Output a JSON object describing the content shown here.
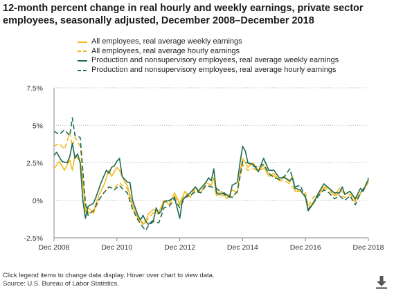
{
  "title_line1": "12-month percent change in real hourly and weekly earnings, private sector",
  "title_line2": "employees, seasonally adjusted, December 2008–December 2018",
  "footnote_line1": "Click legend items to change data display. Hover over chart to view data.",
  "footnote_line2": "Source: U.S. Bureau of Labor Statistics.",
  "download_icon": "download-icon",
  "colors": {
    "all": "#f2b81d",
    "prod": "#1f6b4f"
  },
  "chart_data": {
    "type": "line",
    "xlabel": "",
    "ylabel": "",
    "ylim": [
      -2.5,
      7.5
    ],
    "yticks": [
      -2.5,
      0,
      2.5,
      5,
      7.5
    ],
    "ytick_labels": [
      "-2.5%",
      "0%",
      "2.5%",
      "5%",
      "7.5%"
    ],
    "xlim": [
      0,
      120
    ],
    "xticks": [
      0,
      24,
      48,
      72,
      96,
      120
    ],
    "xtick_labels": [
      "Dec 2008",
      "Dec 2010",
      "Dec 2012",
      "Dec 2014",
      "Dec 2016",
      "Dec 2018"
    ],
    "x_unit": "months since Dec 2008",
    "grid": "horizontal dotted",
    "legend_position": "top",
    "series": [
      {
        "name": "All employees, real average weekly earnings",
        "style": "solid",
        "color": "#f2b81d",
        "points": [
          [
            0,
            2.1
          ],
          [
            2,
            2.6
          ],
          [
            4,
            2.0
          ],
          [
            6,
            2.7
          ],
          [
            7,
            2.0
          ],
          [
            8,
            3.0
          ],
          [
            10,
            2.6
          ],
          [
            11,
            1.2
          ],
          [
            12,
            -0.8
          ],
          [
            13,
            -0.5
          ],
          [
            15,
            -0.8
          ],
          [
            17,
            0.3
          ],
          [
            19,
            1.0
          ],
          [
            21,
            2.0
          ],
          [
            22,
            1.6
          ],
          [
            24,
            2.2
          ],
          [
            25,
            2.0
          ],
          [
            26,
            1.6
          ],
          [
            27,
            1.2
          ],
          [
            28,
            1.0
          ],
          [
            30,
            -0.3
          ],
          [
            32,
            -1.2
          ],
          [
            34,
            -1.6
          ],
          [
            35,
            -1.4
          ],
          [
            36,
            -0.9
          ],
          [
            38,
            -0.6
          ],
          [
            40,
            -0.8
          ],
          [
            42,
            0.0
          ],
          [
            44,
            -0.3
          ],
          [
            46,
            0.5
          ],
          [
            48,
            -0.2
          ],
          [
            50,
            0.6
          ],
          [
            52,
            0.2
          ],
          [
            54,
            0.9
          ],
          [
            56,
            0.5
          ],
          [
            58,
            1.2
          ],
          [
            60,
            1.0
          ],
          [
            61,
            1.5
          ],
          [
            62,
            0.3
          ],
          [
            64,
            0.6
          ],
          [
            66,
            0.1
          ],
          [
            68,
            0.7
          ],
          [
            70,
            0.5
          ],
          [
            71,
            1.8
          ],
          [
            72,
            2.8
          ],
          [
            74,
            2.2
          ],
          [
            76,
            2.5
          ],
          [
            78,
            2.0
          ],
          [
            80,
            2.3
          ],
          [
            82,
            1.6
          ],
          [
            84,
            1.8
          ],
          [
            86,
            1.3
          ],
          [
            88,
            1.6
          ],
          [
            90,
            1.2
          ],
          [
            91,
            1.6
          ],
          [
            92,
            0.6
          ],
          [
            94,
            0.6
          ],
          [
            96,
            0.3
          ],
          [
            97,
            -0.6
          ],
          [
            99,
            -0.1
          ],
          [
            101,
            0.4
          ],
          [
            103,
            0.9
          ],
          [
            105,
            0.8
          ],
          [
            107,
            0.3
          ],
          [
            109,
            0.8
          ],
          [
            111,
            0.4
          ],
          [
            113,
            0.6
          ],
          [
            115,
            0.0
          ],
          [
            117,
            0.5
          ],
          [
            119,
            1.0
          ],
          [
            120,
            1.3
          ]
        ]
      },
      {
        "name": "All employees, real average hourly earnings",
        "style": "dashed",
        "color": "#f2b81d",
        "points": [
          [
            0,
            3.6
          ],
          [
            2,
            3.8
          ],
          [
            4,
            3.4
          ],
          [
            6,
            4.5
          ],
          [
            7,
            3.6
          ],
          [
            8,
            4.2
          ],
          [
            10,
            3.6
          ],
          [
            11,
            1.8
          ],
          [
            12,
            -0.3
          ],
          [
            13,
            -0.8
          ],
          [
            15,
            -0.9
          ],
          [
            17,
            0.0
          ],
          [
            19,
            0.5
          ],
          [
            21,
            0.9
          ],
          [
            23,
            0.8
          ],
          [
            25,
            1.2
          ],
          [
            26,
            1.0
          ],
          [
            28,
            0.8
          ],
          [
            30,
            -0.4
          ],
          [
            32,
            -1.2
          ],
          [
            34,
            -1.5
          ],
          [
            35,
            -1.6
          ],
          [
            36,
            -1.2
          ],
          [
            38,
            -0.8
          ],
          [
            40,
            -0.9
          ],
          [
            42,
            0.0
          ],
          [
            44,
            -0.1
          ],
          [
            46,
            0.3
          ],
          [
            48,
            -0.3
          ],
          [
            50,
            0.4
          ],
          [
            52,
            0.3
          ],
          [
            54,
            0.7
          ],
          [
            56,
            0.5
          ],
          [
            58,
            1.0
          ],
          [
            60,
            0.9
          ],
          [
            62,
            0.6
          ],
          [
            64,
            0.3
          ],
          [
            66,
            0.4
          ],
          [
            68,
            0.2
          ],
          [
            70,
            0.6
          ],
          [
            72,
            2.4
          ],
          [
            74,
            2.0
          ],
          [
            76,
            2.1
          ],
          [
            78,
            2.0
          ],
          [
            80,
            2.1
          ],
          [
            82,
            1.8
          ],
          [
            84,
            1.6
          ],
          [
            86,
            1.3
          ],
          [
            88,
            1.3
          ],
          [
            90,
            1.1
          ],
          [
            92,
            0.7
          ],
          [
            94,
            0.6
          ],
          [
            96,
            0.5
          ],
          [
            97,
            -0.4
          ],
          [
            99,
            0.2
          ],
          [
            101,
            0.4
          ],
          [
            103,
            0.8
          ],
          [
            105,
            0.7
          ],
          [
            107,
            0.3
          ],
          [
            109,
            0.4
          ],
          [
            111,
            0.2
          ],
          [
            113,
            0.4
          ],
          [
            115,
            -0.1
          ],
          [
            117,
            0.4
          ],
          [
            119,
            0.9
          ],
          [
            120,
            1.2
          ]
        ]
      },
      {
        "name": "Production and nonsupervisory employees, real average weekly earnings",
        "style": "solid",
        "color": "#1f6b4f",
        "points": [
          [
            0,
            3.0
          ],
          [
            1,
            3.2
          ],
          [
            3,
            2.6
          ],
          [
            5,
            2.5
          ],
          [
            6,
            2.9
          ],
          [
            7,
            3.8
          ],
          [
            8,
            2.8
          ],
          [
            9,
            3.1
          ],
          [
            10,
            2.5
          ],
          [
            11,
            0.0
          ],
          [
            12,
            -1.2
          ],
          [
            13,
            -0.4
          ],
          [
            15,
            -0.2
          ],
          [
            16,
            0.2
          ],
          [
            18,
            1.2
          ],
          [
            20,
            2.0
          ],
          [
            21,
            1.8
          ],
          [
            22,
            2.2
          ],
          [
            23,
            2.3
          ],
          [
            24,
            2.6
          ],
          [
            25,
            2.8
          ],
          [
            26,
            1.6
          ],
          [
            28,
            1.2
          ],
          [
            29,
            1.2
          ],
          [
            30,
            0.0
          ],
          [
            32,
            -1.0
          ],
          [
            33,
            -1.3
          ],
          [
            34,
            -1.0
          ],
          [
            35,
            -1.4
          ],
          [
            36,
            -1.6
          ],
          [
            38,
            -1.3
          ],
          [
            39,
            -0.5
          ],
          [
            40,
            -0.9
          ],
          [
            41,
            -0.7
          ],
          [
            42,
            -0.1
          ],
          [
            44,
            0.0
          ],
          [
            46,
            0.2
          ],
          [
            48,
            -1.2
          ],
          [
            49,
            0.0
          ],
          [
            50,
            0.2
          ],
          [
            52,
            0.5
          ],
          [
            54,
            0.9
          ],
          [
            55,
            0.6
          ],
          [
            57,
            1.0
          ],
          [
            58,
            1.2
          ],
          [
            59,
            1.5
          ],
          [
            60,
            1.3
          ],
          [
            61,
            2.1
          ],
          [
            62,
            0.5
          ],
          [
            63,
            0.4
          ],
          [
            65,
            0.5
          ],
          [
            67,
            0.2
          ],
          [
            68,
            1.0
          ],
          [
            70,
            1.2
          ],
          [
            71,
            2.5
          ],
          [
            72,
            3.6
          ],
          [
            73,
            3.3
          ],
          [
            74,
            2.5
          ],
          [
            76,
            2.4
          ],
          [
            78,
            1.9
          ],
          [
            80,
            2.8
          ],
          [
            82,
            2.0
          ],
          [
            84,
            2.0
          ],
          [
            86,
            1.5
          ],
          [
            88,
            1.5
          ],
          [
            90,
            1.3
          ],
          [
            91,
            1.5
          ],
          [
            92,
            0.8
          ],
          [
            94,
            0.7
          ],
          [
            96,
            0.2
          ],
          [
            97,
            -0.7
          ],
          [
            99,
            -0.2
          ],
          [
            101,
            0.5
          ],
          [
            103,
            1.1
          ],
          [
            105,
            0.8
          ],
          [
            107,
            0.5
          ],
          [
            109,
            0.5
          ],
          [
            110,
            0.9
          ],
          [
            111,
            0.4
          ],
          [
            113,
            0.6
          ],
          [
            115,
            0.1
          ],
          [
            117,
            0.8
          ],
          [
            118,
            0.6
          ],
          [
            119,
            1.0
          ],
          [
            120,
            1.4
          ]
        ]
      },
      {
        "name": "Production and nonsupervisory employees, real average hourly earnings",
        "style": "dashed",
        "color": "#1f6b4f",
        "points": [
          [
            0,
            4.6
          ],
          [
            2,
            4.4
          ],
          [
            4,
            4.7
          ],
          [
            6,
            4.3
          ],
          [
            7,
            5.5
          ],
          [
            8,
            4.3
          ],
          [
            10,
            4.2
          ],
          [
            11,
            2.0
          ],
          [
            12,
            -0.2
          ],
          [
            13,
            -1.0
          ],
          [
            15,
            -0.7
          ],
          [
            17,
            0.0
          ],
          [
            19,
            0.5
          ],
          [
            21,
            0.9
          ],
          [
            23,
            0.7
          ],
          [
            25,
            1.0
          ],
          [
            26,
            0.8
          ],
          [
            28,
            0.5
          ],
          [
            30,
            -0.6
          ],
          [
            32,
            -1.3
          ],
          [
            34,
            -1.8
          ],
          [
            35,
            -2.0
          ],
          [
            36,
            -1.7
          ],
          [
            38,
            -1.4
          ],
          [
            40,
            -1.5
          ],
          [
            42,
            -0.5
          ],
          [
            44,
            -0.4
          ],
          [
            46,
            0.1
          ],
          [
            48,
            -0.5
          ],
          [
            50,
            0.2
          ],
          [
            52,
            0.3
          ],
          [
            54,
            0.6
          ],
          [
            56,
            0.5
          ],
          [
            58,
            1.0
          ],
          [
            60,
            0.9
          ],
          [
            62,
            0.8
          ],
          [
            64,
            0.5
          ],
          [
            66,
            0.3
          ],
          [
            68,
            0.2
          ],
          [
            70,
            0.6
          ],
          [
            72,
            2.6
          ],
          [
            74,
            2.5
          ],
          [
            76,
            2.3
          ],
          [
            78,
            2.2
          ],
          [
            80,
            2.4
          ],
          [
            82,
            1.8
          ],
          [
            84,
            1.5
          ],
          [
            86,
            1.4
          ],
          [
            88,
            1.6
          ],
          [
            90,
            2.1
          ],
          [
            92,
            0.9
          ],
          [
            94,
            1.0
          ],
          [
            96,
            0.2
          ],
          [
            97,
            -0.6
          ],
          [
            99,
            -0.2
          ],
          [
            101,
            0.3
          ],
          [
            103,
            0.7
          ],
          [
            105,
            0.5
          ],
          [
            107,
            0.1
          ],
          [
            109,
            0.3
          ],
          [
            111,
            0.0
          ],
          [
            113,
            0.3
          ],
          [
            115,
            -0.3
          ],
          [
            117,
            0.5
          ],
          [
            119,
            1.0
          ],
          [
            120,
            1.5
          ]
        ]
      }
    ]
  }
}
